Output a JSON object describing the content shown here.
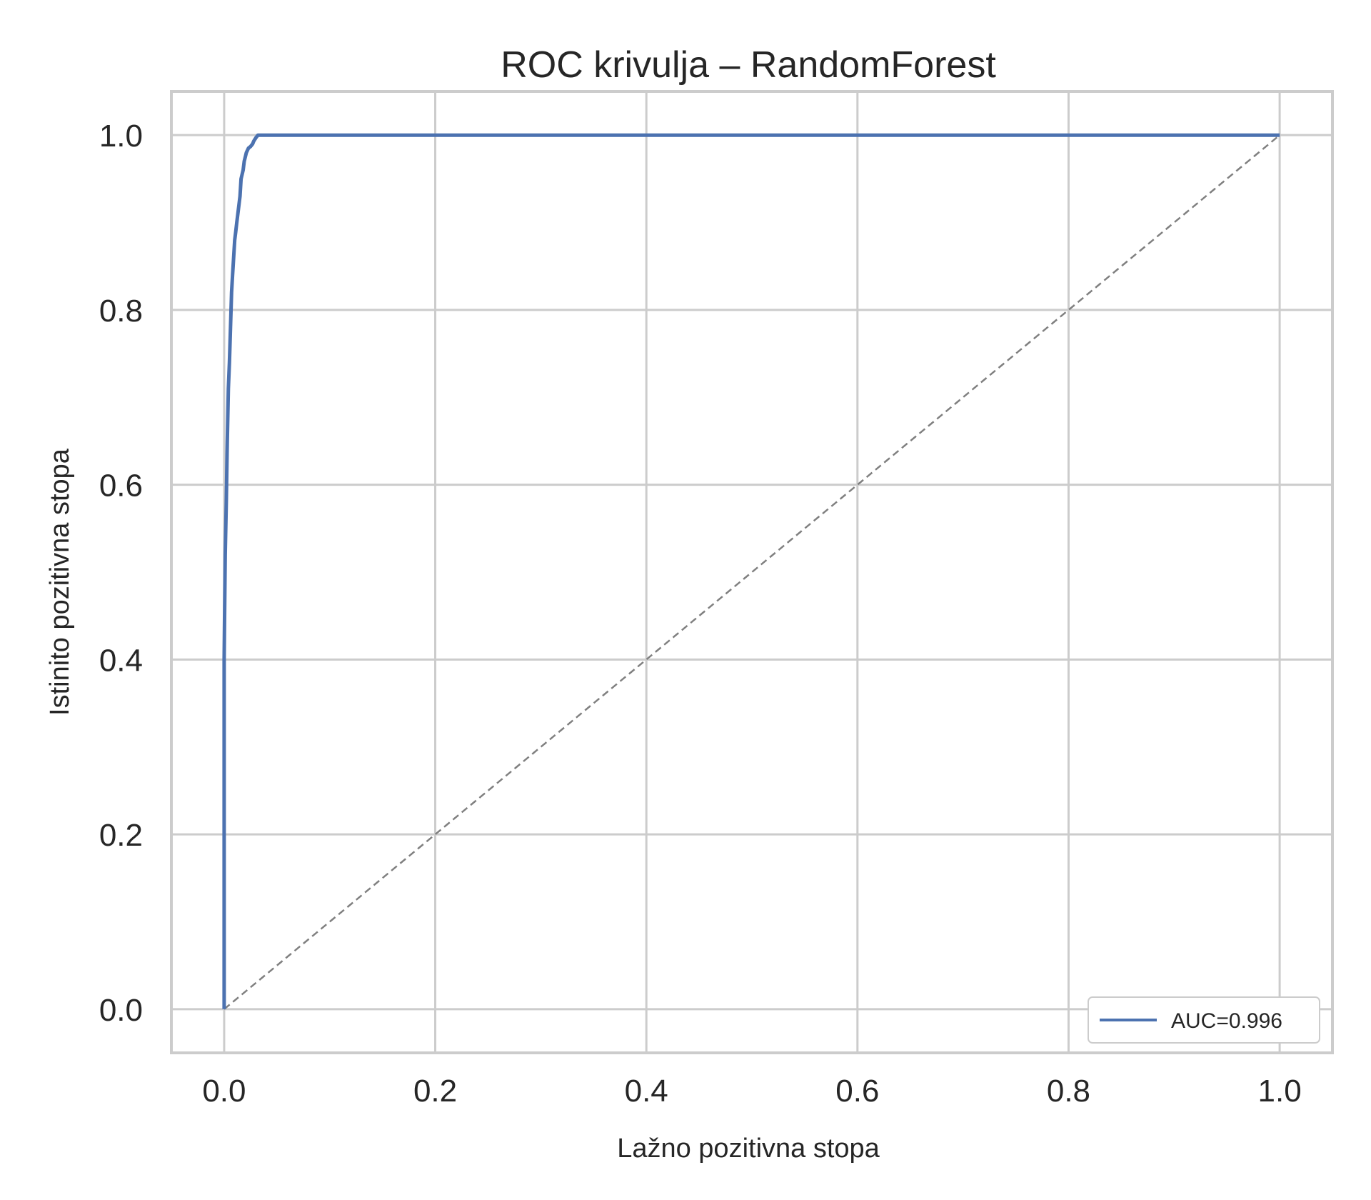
{
  "chart_data": {
    "type": "line",
    "title": "ROC krivulja – RandomForest",
    "xlabel": "Lažno pozitivna stopa",
    "ylabel": "Istinito pozitivna stopa",
    "xlim": [
      -0.05,
      1.05
    ],
    "ylim": [
      -0.05,
      1.05
    ],
    "xticks": [
      0.0,
      0.2,
      0.4,
      0.6,
      0.8,
      1.0
    ],
    "yticks": [
      0.0,
      0.2,
      0.4,
      0.6,
      0.8,
      1.0
    ],
    "xtick_labels": [
      "0.0",
      "0.2",
      "0.4",
      "0.6",
      "0.8",
      "1.0"
    ],
    "ytick_labels": [
      "0.0",
      "0.2",
      "0.4",
      "0.6",
      "0.8",
      "1.0"
    ],
    "grid": true,
    "legend_position": "lower-right",
    "series": [
      {
        "name": "AUC=0.996",
        "color": "#4c72b0",
        "style": "solid",
        "x": [
          0.0,
          0.0,
          0.001,
          0.002,
          0.003,
          0.004,
          0.005,
          0.006,
          0.007,
          0.008,
          0.009,
          0.01,
          0.011,
          0.012,
          0.013,
          0.015,
          0.016,
          0.018,
          0.019,
          0.02,
          0.021,
          0.023,
          0.025,
          0.027,
          0.028,
          0.03,
          0.032,
          0.035,
          0.04,
          0.045,
          0.05,
          0.1,
          0.5,
          1.0
        ],
        "y": [
          0.0,
          0.4,
          0.52,
          0.58,
          0.65,
          0.71,
          0.74,
          0.78,
          0.82,
          0.84,
          0.86,
          0.88,
          0.89,
          0.9,
          0.91,
          0.93,
          0.95,
          0.96,
          0.97,
          0.975,
          0.98,
          0.985,
          0.987,
          0.99,
          0.993,
          0.997,
          1.0,
          1.0,
          1.0,
          1.0,
          1.0,
          1.0,
          1.0,
          1.0
        ]
      }
    ],
    "reference_line": {
      "x": [
        0.0,
        1.0
      ],
      "y": [
        0.0,
        1.0
      ],
      "color": "#808080",
      "style": "dashed"
    }
  }
}
